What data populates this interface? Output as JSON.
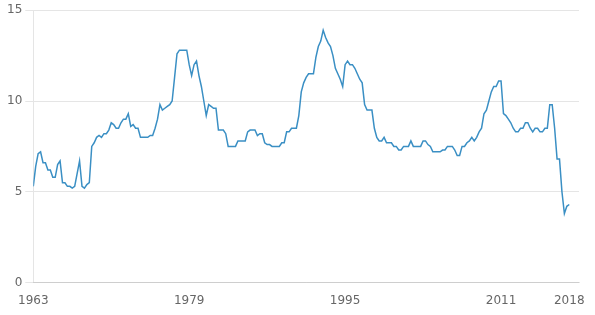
{
  "chart_data": {
    "type": "line",
    "color": "#3a8fc4",
    "x": [
      1963,
      1963.25,
      1963.5,
      1963.75,
      1964,
      1964.25,
      1964.5,
      1964.75,
      1965,
      1965.25,
      1965.5,
      1965.75,
      1966,
      1966.25,
      1966.5,
      1966.75,
      1967,
      1967.25,
      1967.5,
      1967.75,
      1968,
      1968.25,
      1968.5,
      1968.75,
      1969,
      1969.25,
      1969.5,
      1969.75,
      1970,
      1970.25,
      1970.5,
      1970.75,
      1971,
      1971.25,
      1971.5,
      1971.75,
      1972,
      1972.25,
      1972.5,
      1972.75,
      1973,
      1973.25,
      1973.5,
      1973.75,
      1974,
      1974.25,
      1974.5,
      1974.75,
      1975,
      1975.25,
      1975.5,
      1975.75,
      1976,
      1976.25,
      1976.5,
      1976.75,
      1977,
      1977.25,
      1977.5,
      1977.75,
      1978,
      1978.25,
      1978.5,
      1978.75,
      1979,
      1979.25,
      1979.5,
      1979.75,
      1980,
      1980.25,
      1980.5,
      1980.75,
      1981,
      1981.25,
      1981.5,
      1981.75,
      1982,
      1982.25,
      1982.5,
      1982.75,
      1983,
      1983.25,
      1983.5,
      1983.75,
      1984,
      1984.25,
      1984.5,
      1984.75,
      1985,
      1985.25,
      1985.5,
      1985.75,
      1986,
      1986.25,
      1986.5,
      1986.75,
      1987,
      1987.25,
      1987.5,
      1987.75,
      1988,
      1988.25,
      1988.5,
      1988.75,
      1989,
      1989.25,
      1989.5,
      1989.75,
      1990,
      1990.25,
      1990.5,
      1990.75,
      1991,
      1991.25,
      1991.5,
      1991.75,
      1992,
      1992.25,
      1992.5,
      1992.75,
      1993,
      1993.25,
      1993.5,
      1993.75,
      1994,
      1994.25,
      1994.5,
      1994.75,
      1995,
      1995.25,
      1995.5,
      1995.75,
      1996,
      1996.25,
      1996.5,
      1996.75,
      1997,
      1997.25,
      1997.5,
      1997.75,
      1998,
      1998.25,
      1998.5,
      1998.75,
      1999,
      1999.25,
      1999.5,
      1999.75,
      2000,
      2000.25,
      2000.5,
      2000.75,
      2001,
      2001.25,
      2001.5,
      2001.75,
      2002,
      2002.25,
      2002.5,
      2002.75,
      2003,
      2003.25,
      2003.5,
      2003.75,
      2004,
      2004.25,
      2004.5,
      2004.75,
      2005,
      2005.25,
      2005.5,
      2005.75,
      2006,
      2006.25,
      2006.5,
      2006.75,
      2007,
      2007.25,
      2007.5,
      2007.75,
      2008,
      2008.25,
      2008.5,
      2008.75,
      2009,
      2009.25,
      2009.5,
      2009.75,
      2010,
      2010.25,
      2010.5,
      2010.75,
      2011,
      2011.25,
      2011.5,
      2011.75,
      2012,
      2012.25,
      2012.5,
      2012.75,
      2013,
      2013.25,
      2013.5,
      2013.75,
      2014,
      2014.25,
      2014.5,
      2014.75,
      2015,
      2015.25,
      2015.5,
      2015.75,
      2016,
      2016.25,
      2016.5,
      2016.75,
      2017,
      2017.25,
      2017.5,
      2017.75,
      2018
    ],
    "values": [
      5.3,
      6.4,
      7.1,
      7.2,
      6.6,
      6.6,
      6.2,
      6.2,
      5.8,
      5.8,
      6.5,
      6.7,
      5.5,
      5.5,
      5.3,
      5.3,
      5.2,
      5.3,
      6.0,
      6.7,
      5.3,
      5.2,
      5.4,
      5.5,
      7.5,
      7.7,
      8.0,
      8.1,
      8.0,
      8.2,
      8.2,
      8.4,
      8.8,
      8.7,
      8.5,
      8.5,
      8.8,
      9.0,
      9.0,
      9.3,
      8.6,
      8.7,
      8.5,
      8.5,
      8.0,
      8.0,
      8.0,
      8.0,
      8.1,
      8.1,
      8.5,
      9.0,
      9.8,
      9.5,
      9.6,
      9.7,
      9.8,
      10.0,
      11.3,
      12.6,
      12.8,
      12.8,
      12.8,
      12.8,
      12.0,
      11.4,
      12.0,
      12.2,
      11.4,
      10.8,
      10.0,
      9.2,
      9.8,
      9.7,
      9.6,
      9.6,
      8.4,
      8.4,
      8.4,
      8.2,
      7.5,
      7.5,
      7.5,
      7.5,
      7.8,
      7.8,
      7.8,
      7.8,
      8.3,
      8.4,
      8.4,
      8.4,
      8.1,
      8.2,
      8.2,
      7.7,
      7.6,
      7.6,
      7.5,
      7.5,
      7.5,
      7.5,
      7.7,
      7.7,
      8.3,
      8.3,
      8.5,
      8.5,
      8.5,
      9.2,
      10.5,
      11.0,
      11.3,
      11.5,
      11.5,
      11.5,
      12.4,
      13.0,
      13.3,
      13.9,
      13.5,
      13.2,
      13.0,
      12.5,
      11.8,
      11.5,
      11.2,
      10.8,
      12.0,
      12.2,
      12.0,
      12.0,
      11.8,
      11.5,
      11.2,
      11.0,
      9.8,
      9.5,
      9.5,
      9.5,
      8.5,
      8.0,
      7.8,
      7.8,
      8.0,
      7.7,
      7.7,
      7.7,
      7.5,
      7.5,
      7.3,
      7.3,
      7.5,
      7.5,
      7.5,
      7.8,
      7.5,
      7.5,
      7.5,
      7.5,
      7.8,
      7.8,
      7.6,
      7.5,
      7.2,
      7.2,
      7.2,
      7.2,
      7.3,
      7.3,
      7.5,
      7.5,
      7.5,
      7.3,
      7.0,
      7.0,
      7.5,
      7.5,
      7.7,
      7.8,
      8.0,
      7.8,
      8.0,
      8.3,
      8.5,
      9.3,
      9.5,
      10.0,
      10.5,
      10.8,
      10.8,
      11.1,
      11.1,
      9.3,
      9.2,
      9.0,
      8.8,
      8.5,
      8.3,
      8.3,
      8.5,
      8.5,
      8.8,
      8.8,
      8.5,
      8.3,
      8.5,
      8.5,
      8.3,
      8.3,
      8.5,
      8.5,
      9.8,
      9.8,
      8.5,
      6.8,
      6.8,
      5.0,
      3.8,
      4.2,
      4.3
    ],
    "xlim": [
      1963,
      2019
    ],
    "ylim": [
      0,
      15
    ],
    "xticks": [
      1963,
      1979,
      1995,
      2011,
      2018
    ],
    "yticks": [
      0,
      5,
      10,
      15
    ],
    "grid": "y"
  }
}
